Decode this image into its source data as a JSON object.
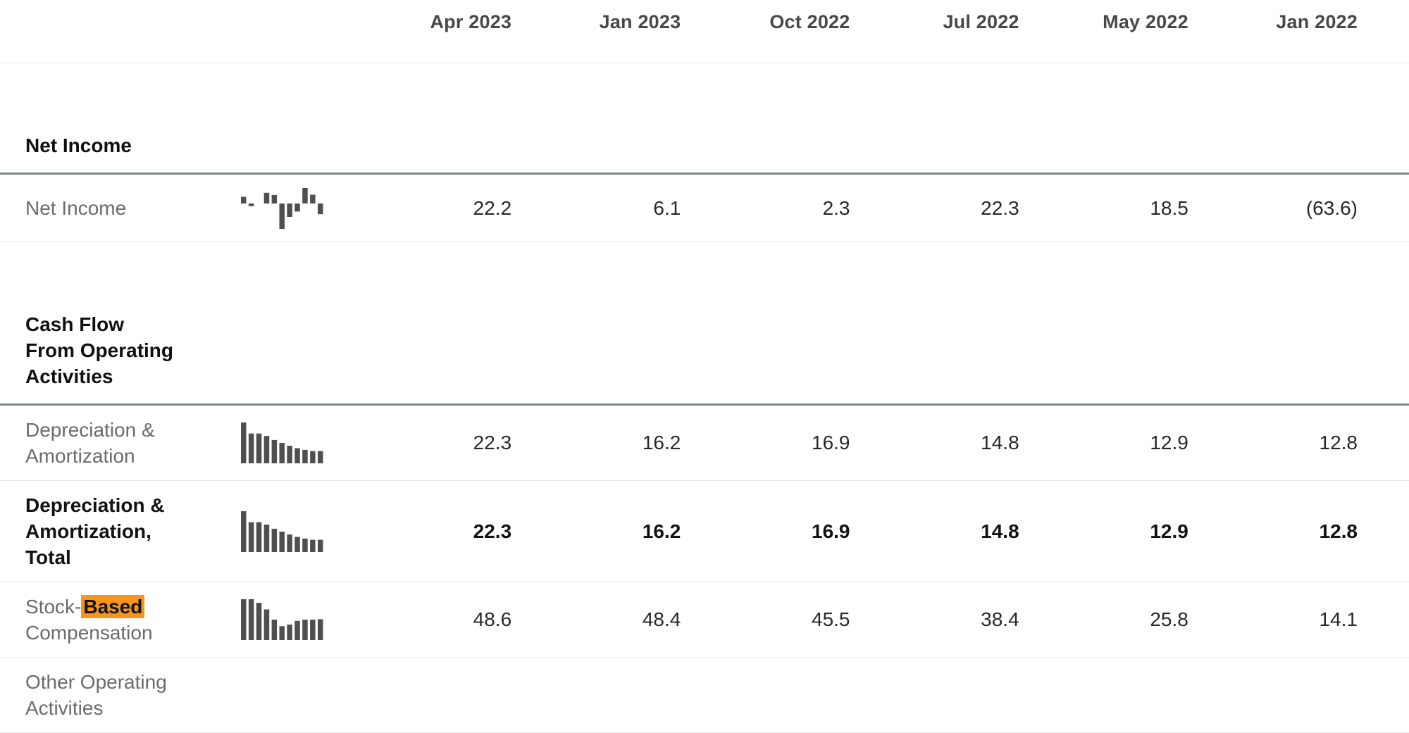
{
  "colors": {
    "highlight_bg": "#f7941e",
    "section_rule": "#7f8989",
    "row_rule": "#e8e8e8",
    "header_text": "#484848",
    "label_text": "#6b6b6b",
    "value_text": "#282828",
    "spark_bar": "#4f4f4f"
  },
  "columns": [
    "Apr 2023",
    "Jan 2023",
    "Oct 2022",
    "Jul 2022",
    "May 2022",
    "Jan 2022"
  ],
  "sections": {
    "net_income": {
      "title": "Net Income"
    },
    "cash_flow": {
      "title": "Cash Flow From Operating Activities"
    }
  },
  "rows": {
    "net_income": {
      "label": "Net Income",
      "values": [
        "22.2",
        "6.1",
        "2.3",
        "22.3",
        "18.5",
        "(63.6)"
      ]
    },
    "da": {
      "label": "Depreciation & Amortization",
      "values": [
        "22.3",
        "16.2",
        "16.9",
        "14.8",
        "12.9",
        "12.8"
      ]
    },
    "da_total": {
      "label": "Depreciation & Amortization, Total",
      "values": [
        "22.3",
        "16.2",
        "16.9",
        "14.8",
        "12.9",
        "12.8"
      ]
    },
    "sbc": {
      "label_pre": "Stock-",
      "label_highlight": "Based",
      "label_post": " Compensation",
      "values": [
        "48.6",
        "48.4",
        "45.5",
        "38.4",
        "25.8",
        "14.1"
      ]
    },
    "other": {
      "label": "Other Operating Activities"
    }
  },
  "chart_data": [
    {
      "type": "bar",
      "name": "net-income-sparkline",
      "values": [
        0.25,
        -0.1,
        0,
        0.4,
        0.32,
        -0.95,
        -0.5,
        -0.3,
        0.58,
        0.33,
        -0.4
      ]
    },
    {
      "type": "bar",
      "name": "depreciation-amortization-sparkline",
      "values": [
        1.0,
        0.73,
        0.73,
        0.67,
        0.57,
        0.5,
        0.43,
        0.37,
        0.33,
        0.3,
        0.3
      ]
    },
    {
      "type": "bar",
      "name": "depreciation-amortization-total-sparkline",
      "values": [
        1.0,
        0.73,
        0.73,
        0.67,
        0.57,
        0.5,
        0.43,
        0.37,
        0.33,
        0.3,
        0.3
      ]
    },
    {
      "type": "bar",
      "name": "stock-based-compensation-sparkline",
      "values": [
        1.0,
        1.0,
        0.91,
        0.75,
        0.5,
        0.34,
        0.38,
        0.47,
        0.5,
        0.5,
        0.51
      ]
    }
  ]
}
